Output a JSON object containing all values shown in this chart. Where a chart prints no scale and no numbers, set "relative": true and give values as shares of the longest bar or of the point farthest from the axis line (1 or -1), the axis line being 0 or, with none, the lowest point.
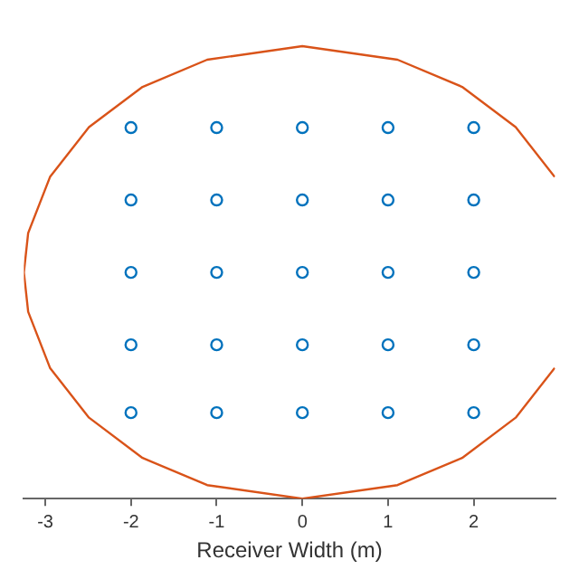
{
  "chart_data": {
    "type": "scatter",
    "xlabel": "Receiver Width (m)",
    "relative": true,
    "xlim": [
      -3.25,
      2.95
    ],
    "xticks": [
      -3,
      -2,
      -1,
      0,
      1,
      2
    ],
    "grid": false,
    "legend": false,
    "series": [
      {
        "type": "scatter",
        "color": "#0072bd",
        "marker": "circle",
        "x": [
          -2,
          -1,
          0,
          1,
          2,
          -2,
          -1,
          0,
          1,
          2,
          -2,
          -1,
          0,
          1,
          2,
          -2,
          -1,
          0,
          1,
          2,
          -2,
          -1,
          0,
          1,
          2
        ],
        "values": [
          0.82,
          0.82,
          0.82,
          0.82,
          0.82,
          0.66,
          0.66,
          0.66,
          0.66,
          0.66,
          0.5,
          0.5,
          0.5,
          0.5,
          0.5,
          0.34,
          0.34,
          0.34,
          0.34,
          0.34,
          0.19,
          0.19,
          0.19,
          0.19,
          0.19
        ]
      },
      {
        "type": "line",
        "color": "#d95319",
        "marker": "none",
        "line_style": "solid",
        "x": [
          2.945,
          2.49,
          1.865,
          1.111,
          0,
          -1.111,
          -1.865,
          -2.49,
          -2.945,
          -3.2,
          -3.25,
          -3.2,
          -2.945,
          -2.49,
          -1.865,
          -1.111,
          0,
          1.111,
          1.865,
          2.49,
          2.945
        ],
        "values": [
          0.711,
          0.821,
          0.91,
          0.97,
          1,
          0.97,
          0.91,
          0.821,
          0.711,
          0.587,
          0.5,
          0.413,
          0.289,
          0.179,
          0.09,
          0.03,
          0,
          0.03,
          0.09,
          0.179,
          0.289
        ]
      }
    ]
  }
}
